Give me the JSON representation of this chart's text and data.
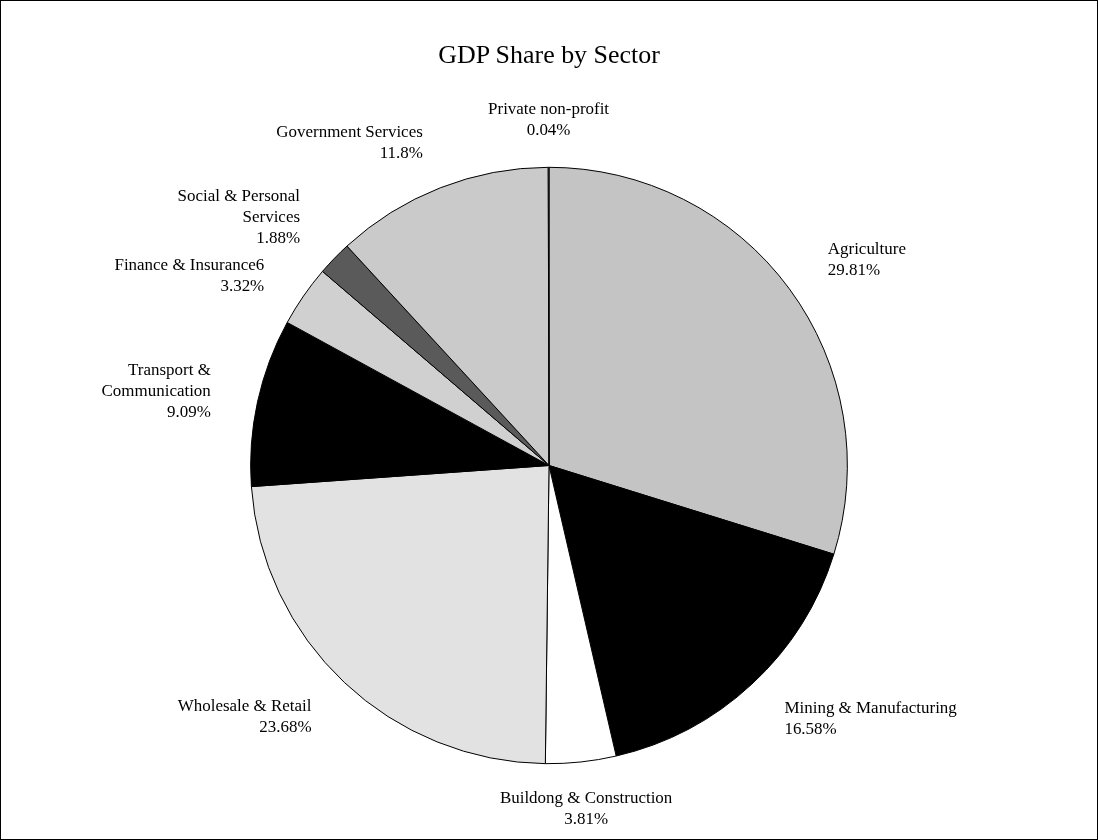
{
  "chart_data": {
    "type": "pie",
    "title": "GDP Share by Sector",
    "categories": [
      "Agriculture",
      "Mining & Manufacturing",
      "Buildong & Construction",
      "Wholesale & Retail",
      "Transport & Communication",
      "Finance & Insurance6",
      "Social & Personal Services",
      "Government Services",
      "Private non-profit"
    ],
    "values": [
      29.81,
      16.58,
      3.81,
      23.68,
      9.09,
      3.32,
      1.88,
      11.8,
      0.04
    ],
    "value_labels": [
      "29.81%",
      "16.58%",
      "3.81%",
      "23.68%",
      "9.09%",
      "3.32%",
      "1.88%",
      "11.8%",
      "0.04%"
    ],
    "colors": [
      "#c4c4c4",
      "#000000",
      "#ffffff",
      "#e2e2e2",
      "#000000",
      "#d0d0d0",
      "#5a5a5a",
      "#cacaca",
      "#ffffff"
    ],
    "legend": false
  }
}
